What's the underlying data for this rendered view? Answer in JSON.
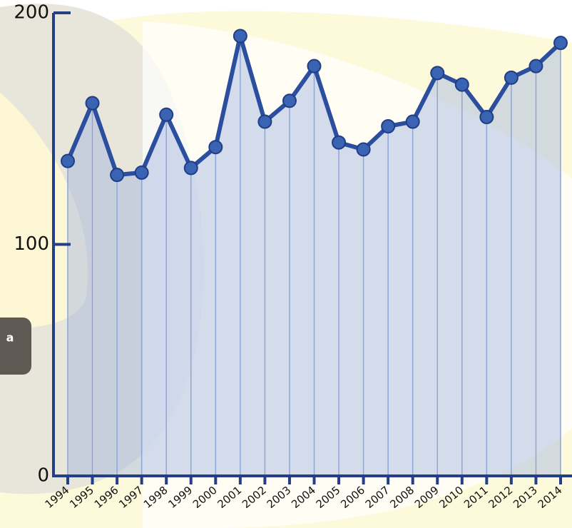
{
  "chart_data": {
    "type": "line",
    "categories": [
      "1994",
      "1995",
      "1996",
      "1997",
      "1998",
      "1999",
      "2000",
      "2001",
      "2002",
      "2003",
      "2004",
      "2005",
      "2006",
      "2007",
      "2008",
      "2009",
      "2010",
      "2011",
      "2012",
      "2013",
      "2014"
    ],
    "values": [
      136,
      161,
      130,
      131,
      156,
      133,
      142,
      190,
      153,
      162,
      177,
      144,
      141,
      151,
      153,
      174,
      169,
      155,
      172,
      177,
      187
    ],
    "color": "#2b4f9e",
    "ylim": [
      0,
      200
    ],
    "yticks": [
      0,
      100,
      200
    ],
    "grid": false
  },
  "ui": {
    "button": "a"
  }
}
